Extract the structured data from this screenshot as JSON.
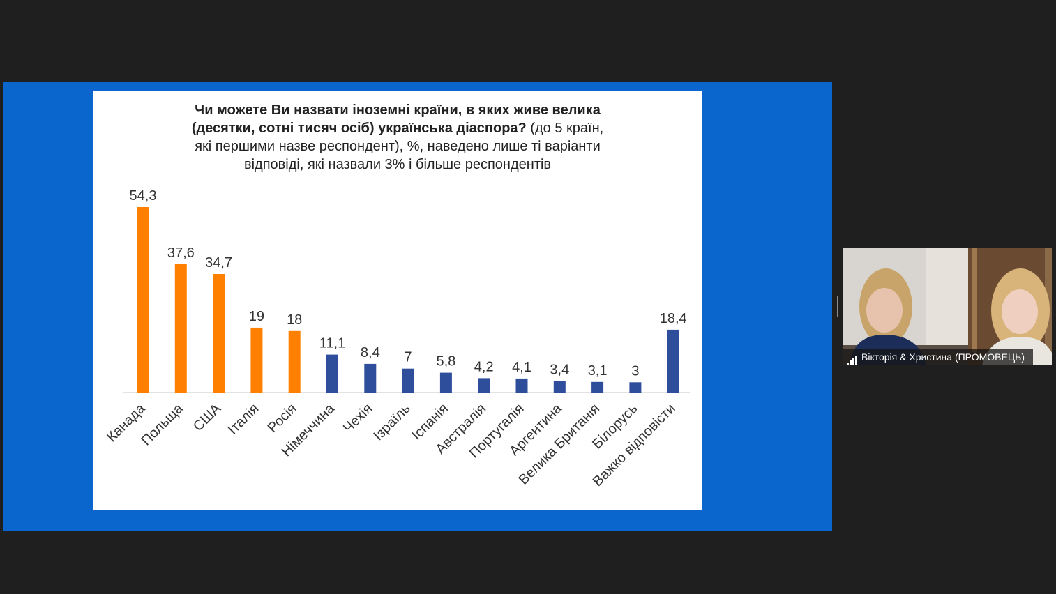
{
  "presentation": {
    "title_bold_line1": "Чи можете Ви назвати іноземні країни, в яких живе велика",
    "title_bold_line2": "(десятки, сотні тисяч осіб) українська діаспора?",
    "title_rest_line2": " (до 5 країн,",
    "title_line3": "які першими  назве респондент),  %, наведено лише  ті варіанти",
    "title_line4": "відповіді, які назвали  3% і більше  респондентів"
  },
  "chart_data": {
    "type": "bar",
    "categories": [
      "Канада",
      "Польща",
      "США",
      "Італія",
      "Росія",
      "Німеччина",
      "Чехія",
      "Ізраїль",
      "Іспанія",
      "Австралія",
      "Португалія",
      "Аргентина",
      "Велика Британія",
      "Білорусь",
      "Важко відповісти"
    ],
    "values": [
      54.3,
      37.6,
      34.7,
      19,
      18,
      11.1,
      8.4,
      7,
      5.8,
      4.2,
      4.1,
      3.4,
      3.1,
      3,
      18.4
    ],
    "value_labels": [
      "54,3",
      "37,6",
      "34,7",
      "19",
      "18",
      "11,1",
      "8,4",
      "7",
      "5,8",
      "4,2",
      "4,1",
      "3,4",
      "3,1",
      "3",
      "18,4"
    ],
    "bar_colors": [
      "#ff8000",
      "#ff8000",
      "#ff8000",
      "#ff8000",
      "#ff8000",
      "#2e4e9c",
      "#2e4e9c",
      "#2e4e9c",
      "#2e4e9c",
      "#2e4e9c",
      "#2e4e9c",
      "#2e4e9c",
      "#2e4e9c",
      "#2e4e9c",
      "#2e4e9c"
    ],
    "ylim": [
      0,
      54.3
    ],
    "grid": false,
    "legend": "none"
  },
  "participant": {
    "name": "Вікторія & Христина (ПРОМОВЕЦЬ)",
    "signal_icon": "signal-bars-icon"
  },
  "colors": {
    "background": "#1f1f1f",
    "share_frame": "#0a66cc",
    "accent_orange": "#ff8000",
    "accent_navy": "#2e4e9c"
  }
}
